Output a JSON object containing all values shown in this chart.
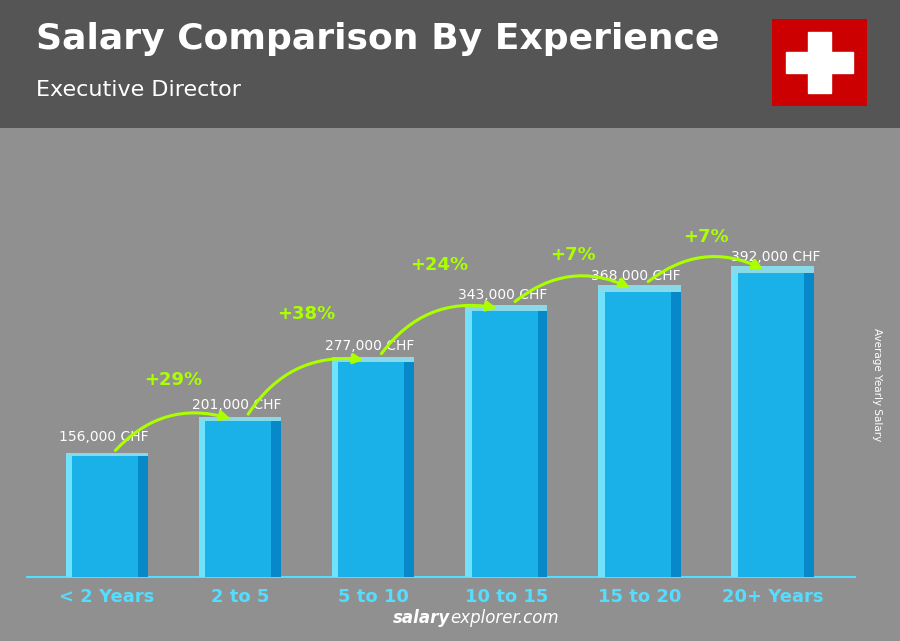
{
  "title": "Salary Comparison By Experience",
  "subtitle": "Executive Director",
  "categories": [
    "< 2 Years",
    "2 to 5",
    "5 to 10",
    "10 to 15",
    "15 to 20",
    "20+ Years"
  ],
  "values": [
    156000,
    201000,
    277000,
    343000,
    368000,
    392000
  ],
  "labels": [
    "156,000 CHF",
    "201,000 CHF",
    "277,000 CHF",
    "343,000 CHF",
    "368,000 CHF",
    "392,000 CHF"
  ],
  "pct_changes": [
    null,
    "+29%",
    "+38%",
    "+24%",
    "+7%",
    "+7%"
  ],
  "bar_color_main": "#00aaee",
  "bar_color_light": "#55ddff",
  "bar_color_dark": "#0077cc",
  "bar_highlight": "#aaeeff",
  "bg_color": "#888888",
  "title_color": "#ffffff",
  "subtitle_color": "#ffffff",
  "label_color": "#ffffff",
  "pct_color": "#aaff00",
  "axis_label_color": "#55ddff",
  "footer_salary_color": "#ffffff",
  "footer_explorer_color": "#aaaaff",
  "side_label": "Average Yearly Salary",
  "ylim": [
    0,
    480000
  ],
  "flag_bg": "#cc0000",
  "flag_cross": "#ffffff",
  "title_fontsize": 26,
  "subtitle_fontsize": 16,
  "tick_fontsize": 13,
  "label_fontsize": 10,
  "pct_fontsize": 13
}
